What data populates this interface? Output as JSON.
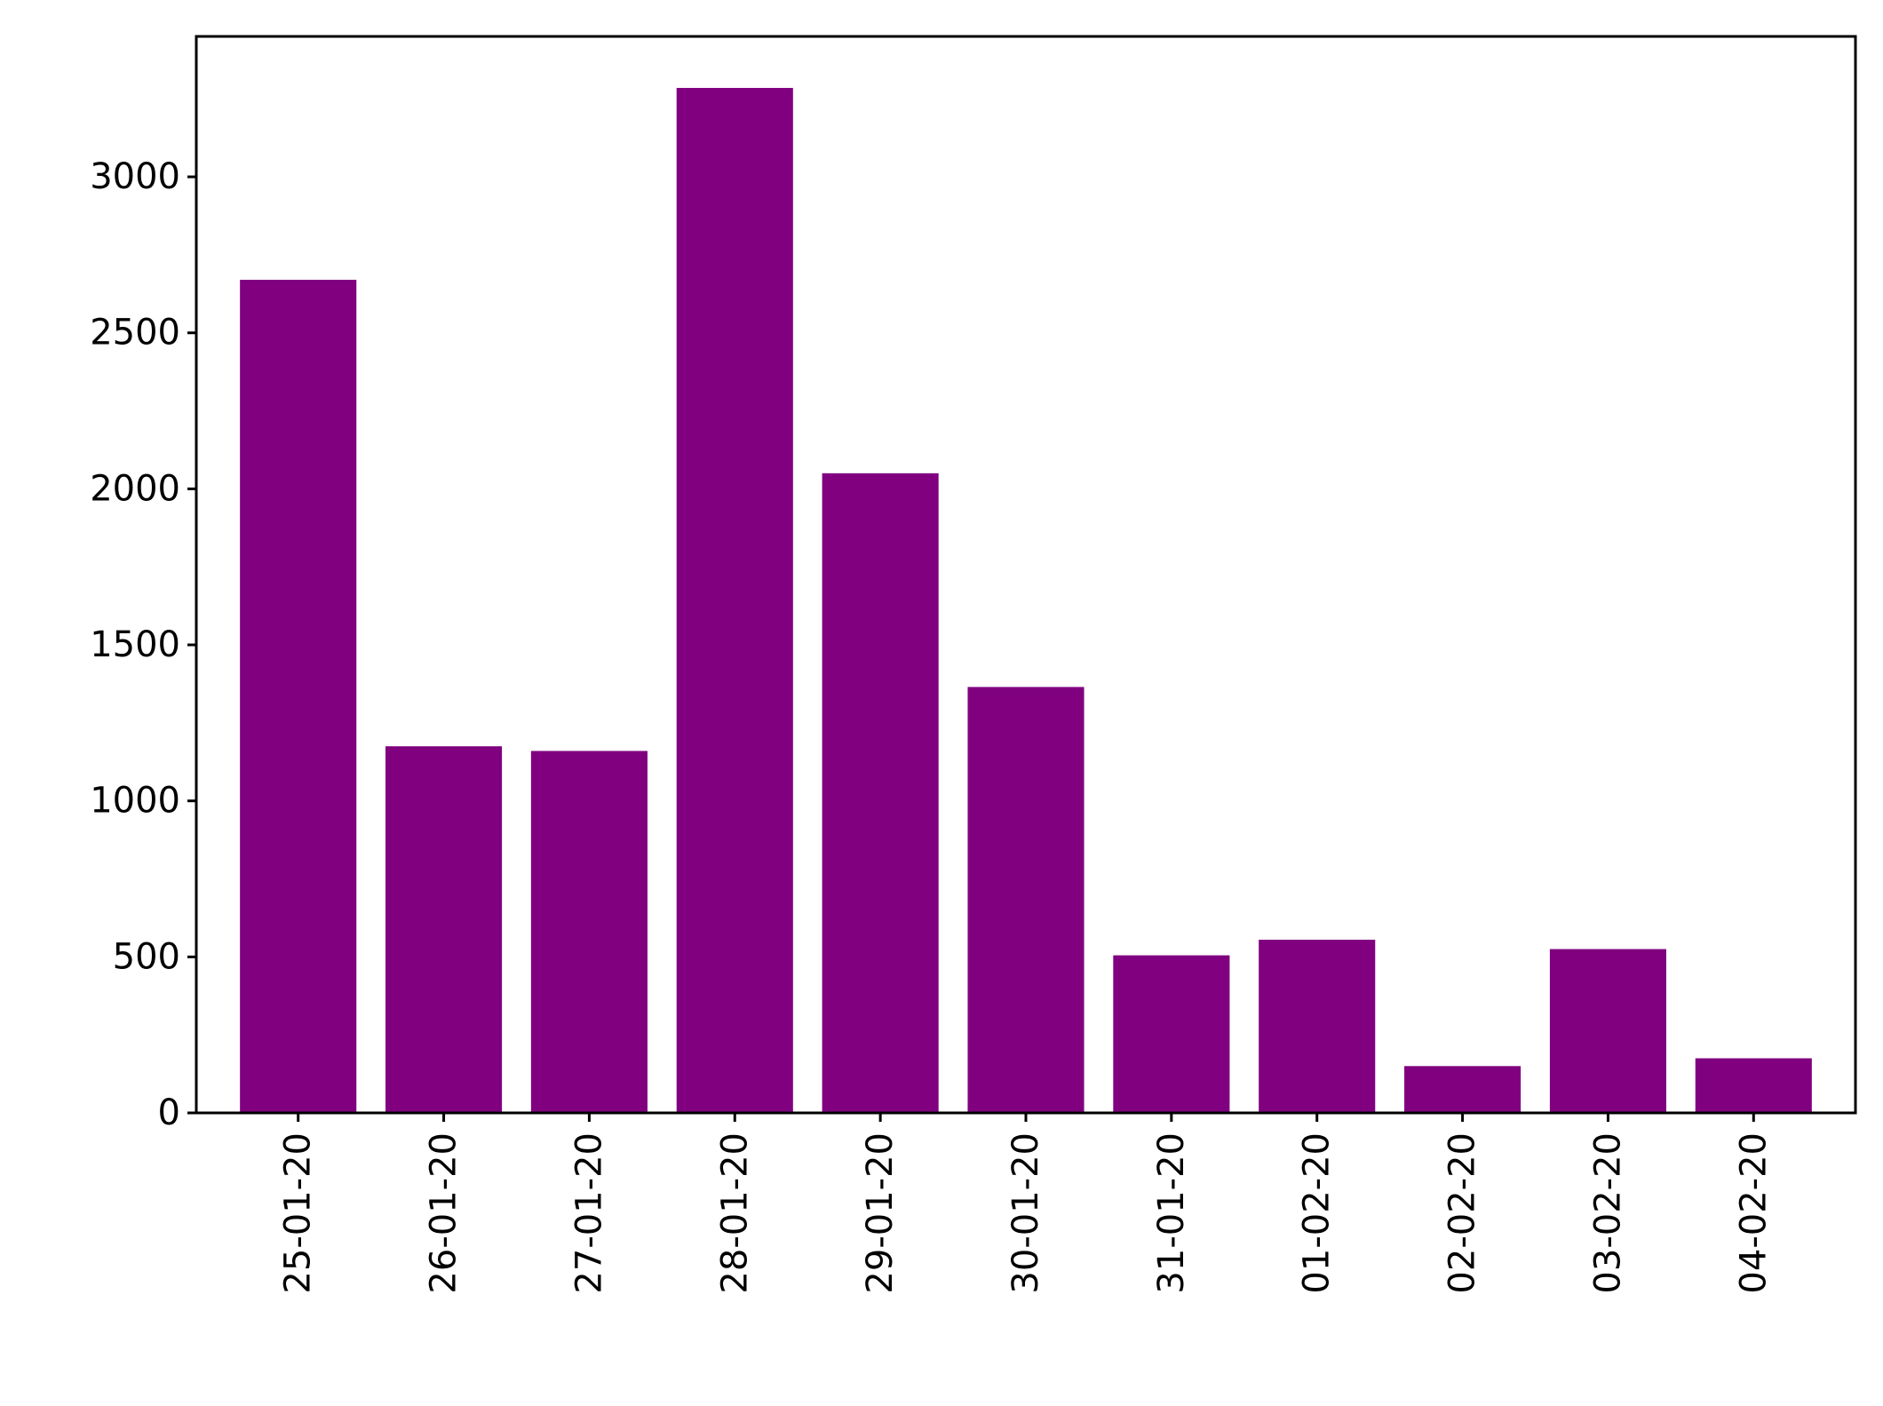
{
  "chart_data": {
    "type": "bar",
    "title": "",
    "xlabel": "",
    "ylabel": "",
    "categories": [
      "25-01-20",
      "26-01-20",
      "27-01-20",
      "28-01-20",
      "29-01-20",
      "30-01-20",
      "31-01-20",
      "01-02-20",
      "02-02-20",
      "03-02-20",
      "04-02-20"
    ],
    "values": [
      2670,
      1175,
      1160,
      3285,
      2050,
      1365,
      505,
      555,
      150,
      525,
      175
    ],
    "yticks": [
      0,
      500,
      1000,
      1500,
      2000,
      2500,
      3000
    ],
    "ylim": [
      0,
      3450
    ],
    "x_tick_rotation": 90,
    "grid": false,
    "legend": "none",
    "colors": {
      "bar": "#800080",
      "axis": "#000000",
      "background": "#ffffff"
    }
  }
}
